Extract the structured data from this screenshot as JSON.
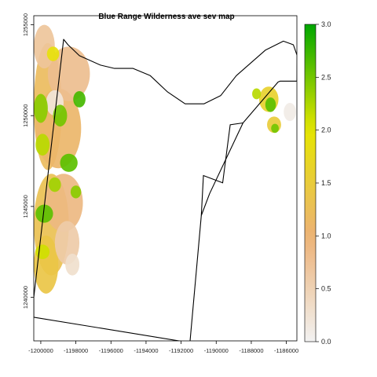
{
  "chart_data": {
    "type": "heatmap",
    "title": "Blue Range Wilderness ave sev map",
    "xlabel": "",
    "ylabel": "",
    "xlim": [
      -1200400,
      -1185400
    ],
    "ylim": [
      -1237600,
      -1255500
    ],
    "x_ticks": [
      -1200000,
      -1198000,
      -1196000,
      -1194000,
      -1192000,
      -1190000,
      -1188000,
      -1186000
    ],
    "x_tick_labels": [
      "-1200000",
      "-1198000",
      "-1196000",
      "-1194000",
      "-1192000",
      "-1190000",
      "-1188000",
      "-1186000"
    ],
    "y_ticks": [
      -1255000,
      -1250000,
      -1245000,
      -1240000
    ],
    "y_tick_labels": [
      "1255000",
      "1250000",
      "1245000",
      "1240000"
    ],
    "legend": {
      "placement": "right",
      "range": [
        0.0,
        3.0
      ],
      "ticks": [
        0.0,
        0.5,
        1.0,
        1.5,
        2.0,
        2.5,
        3.0
      ],
      "tick_labels": [
        "0.0",
        "0.5",
        "1.0",
        "1.5",
        "2.0",
        "2.5",
        "3.0"
      ],
      "colors": [
        "#f2f2f2",
        "#ecb176",
        "#e6e600",
        "#00a600"
      ]
    },
    "boundary": [
      [
        -1200400,
        -1238900
      ],
      [
        -1191500,
        -1237500
      ],
      [
        -1190850,
        -1244500
      ],
      [
        -1190380,
        -1245700
      ],
      [
        -1188470,
        -1249600
      ],
      [
        -1186470,
        -1251850
      ],
      [
        -1186350,
        -1251900
      ],
      [
        -1185400,
        -1251900
      ],
      [
        -1185380,
        -1253300
      ],
      [
        -1185600,
        -1253900
      ],
      [
        -1186170,
        -1254100
      ],
      [
        -1187200,
        -1253600
      ],
      [
        -1188850,
        -1252200
      ],
      [
        -1189750,
        -1251100
      ],
      [
        -1190700,
        -1250650
      ],
      [
        -1191770,
        -1250650
      ],
      [
        -1192770,
        -1251300
      ],
      [
        -1193760,
        -1252200
      ],
      [
        -1194740,
        -1252600
      ],
      [
        -1195800,
        -1252600
      ],
      [
        -1196600,
        -1252780
      ],
      [
        -1197800,
        -1253300
      ],
      [
        -1198450,
        -1253900
      ],
      [
        -1198700,
        -1254200
      ],
      [
        -1200400,
        -1240000
      ]
    ],
    "inner_boundary": [
      [
        -1190850,
        -1244500
      ],
      [
        -1190730,
        -1246700
      ],
      [
        -1189630,
        -1246300
      ],
      [
        -1189200,
        -1249500
      ],
      [
        -1188470,
        -1249600
      ]
    ],
    "severity_patches": [
      {
        "cx": -1199600,
        "cy": -1250500,
        "rx": 800,
        "ry": 3500,
        "value": 1.2
      },
      {
        "cx": -1199000,
        "cy": -1249300,
        "rx": 1300,
        "ry": 2200,
        "value": 1.1
      },
      {
        "cx": -1198400,
        "cy": -1252300,
        "rx": 1200,
        "ry": 1500,
        "value": 0.8
      },
      {
        "cx": -1199400,
        "cy": -1244000,
        "rx": 1000,
        "ry": 2800,
        "value": 1.3
      },
      {
        "cx": -1198700,
        "cy": -1245200,
        "rx": 1100,
        "ry": 1600,
        "value": 0.9
      },
      {
        "cx": -1199700,
        "cy": -1241800,
        "rx": 700,
        "ry": 1600,
        "value": 1.4
      },
      {
        "cx": -1198500,
        "cy": -1243000,
        "rx": 700,
        "ry": 1200,
        "value": 0.6
      },
      {
        "cx": -1199800,
        "cy": -1253800,
        "rx": 600,
        "ry": 1200,
        "value": 0.7
      },
      {
        "cx": -1199200,
        "cy": -1250700,
        "rx": 500,
        "ry": 700,
        "value": 0.2
      },
      {
        "cx": -1200000,
        "cy": -1250400,
        "rx": 400,
        "ry": 800,
        "value": 2.4
      },
      {
        "cx": -1198900,
        "cy": -1250000,
        "rx": 400,
        "ry": 600,
        "value": 2.5
      },
      {
        "cx": -1197800,
        "cy": -1250900,
        "rx": 350,
        "ry": 450,
        "value": 2.7
      },
      {
        "cx": -1199900,
        "cy": -1248400,
        "rx": 400,
        "ry": 600,
        "value": 2.2
      },
      {
        "cx": -1198400,
        "cy": -1247400,
        "rx": 500,
        "ry": 500,
        "value": 2.6
      },
      {
        "cx": -1199200,
        "cy": -1246200,
        "rx": 350,
        "ry": 400,
        "value": 2.3
      },
      {
        "cx": -1199800,
        "cy": -1244600,
        "rx": 500,
        "ry": 500,
        "value": 2.6
      },
      {
        "cx": -1198000,
        "cy": -1245800,
        "rx": 300,
        "ry": 350,
        "value": 2.4
      },
      {
        "cx": -1199900,
        "cy": -1242500,
        "rx": 400,
        "ry": 400,
        "value": 2.1
      },
      {
        "cx": -1199300,
        "cy": -1253400,
        "rx": 350,
        "ry": 400,
        "value": 1.9
      },
      {
        "cx": -1198200,
        "cy": -1241800,
        "rx": 400,
        "ry": 600,
        "value": 0.3
      },
      {
        "cx": -1187000,
        "cy": -1250900,
        "rx": 550,
        "ry": 700,
        "value": 1.6
      },
      {
        "cx": -1186900,
        "cy": -1250600,
        "rx": 300,
        "ry": 400,
        "value": 2.6
      },
      {
        "cx": -1187700,
        "cy": -1251200,
        "rx": 250,
        "ry": 300,
        "value": 2.2
      },
      {
        "cx": -1186700,
        "cy": -1249500,
        "rx": 400,
        "ry": 450,
        "value": 1.5
      },
      {
        "cx": -1186650,
        "cy": -1249300,
        "rx": 220,
        "ry": 250,
        "value": 2.5
      },
      {
        "cx": -1185800,
        "cy": -1250200,
        "rx": 350,
        "ry": 500,
        "value": 0.1
      }
    ]
  }
}
